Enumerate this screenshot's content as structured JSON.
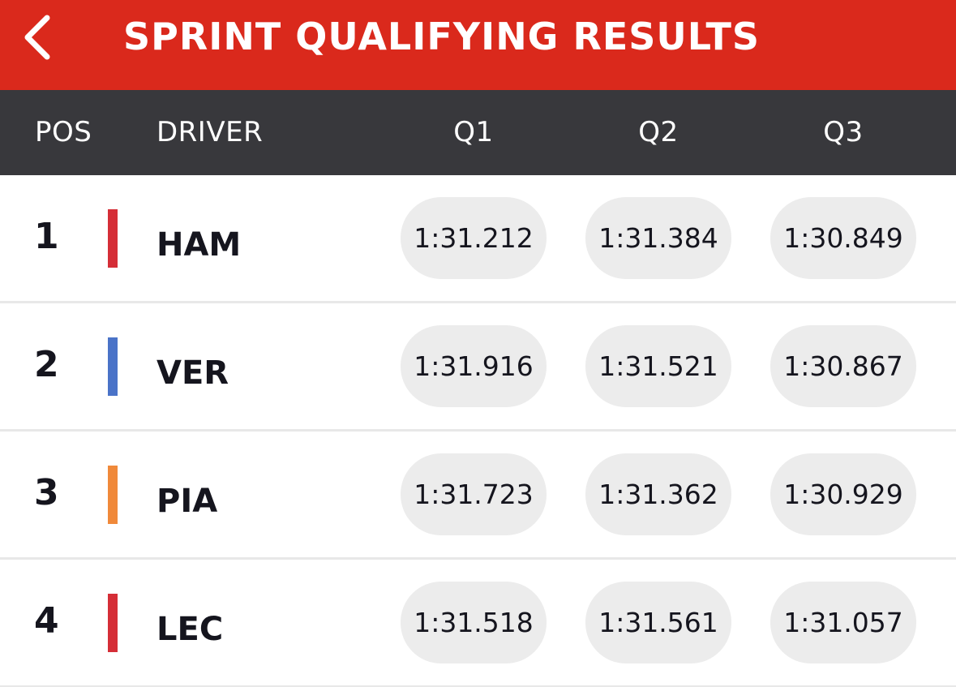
{
  "header": {
    "title": "SPRINT QUALIFYING RESULTS",
    "back_icon": "chevron-left-icon",
    "background_color": "#da291c"
  },
  "table": {
    "columns": {
      "pos": "POS",
      "driver": "DRIVER",
      "q1": "Q1",
      "q2": "Q2",
      "q3": "Q3"
    },
    "header_color": "#38383c",
    "rows": [
      {
        "pos": "1",
        "driver": "HAM",
        "team_color": "#d52e37",
        "q1": "1:31.212",
        "q2": "1:31.384",
        "q3": "1:30.849"
      },
      {
        "pos": "2",
        "driver": "VER",
        "team_color": "#4a73c8",
        "q1": "1:31.916",
        "q2": "1:31.521",
        "q3": "1:30.867"
      },
      {
        "pos": "3",
        "driver": "PIA",
        "team_color": "#f0893a",
        "q1": "1:31.723",
        "q2": "1:31.362",
        "q3": "1:30.929"
      },
      {
        "pos": "4",
        "driver": "LEC",
        "team_color": "#d52e37",
        "q1": "1:31.518",
        "q2": "1:31.561",
        "q3": "1:31.057"
      }
    ]
  }
}
